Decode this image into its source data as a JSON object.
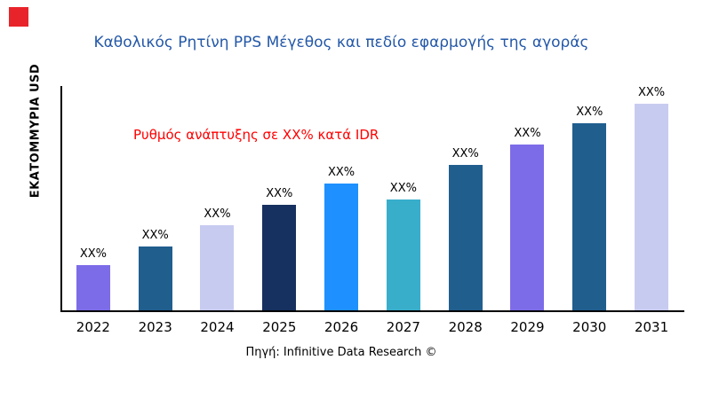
{
  "page": {
    "logo_color": "#E8242A",
    "title_color": "#2458A8"
  },
  "chart_data": {
    "type": "bar",
    "title": "Καθολικός Ρητίνη PPS Μέγεθος και πεδίο εφαρμογής της αγοράς",
    "ylabel": "ΕΚΑΤΟΜΜΥΡΙΑ USD",
    "annotation": {
      "text": "Ρυθμός ανάπτυξης σε XX% κατά IDR",
      "color": "#FF0000"
    },
    "categories": [
      "2022",
      "2023",
      "2024",
      "2025",
      "2026",
      "2027",
      "2028",
      "2029",
      "2030",
      "2031"
    ],
    "values": [
      50,
      71,
      95,
      118,
      141,
      124,
      162,
      185,
      209,
      233
    ],
    "bar_labels": [
      "XX%",
      "XX%",
      "XX%",
      "XX%",
      "XX%",
      "XX%",
      "XX%",
      "XX%",
      "XX%",
      "XX%"
    ],
    "bar_colors": [
      "#7C6CE8",
      "#205E8E",
      "#C8CBF0",
      "#16305F",
      "#1E90FF",
      "#38AECB",
      "#205E8E",
      "#7C6CE8",
      "#205E8E",
      "#C8CBF0"
    ],
    "ymax": 250,
    "grid": false,
    "legend": false,
    "xlabel": "",
    "source": "Πηγή: Infinitive Data Research ©"
  }
}
